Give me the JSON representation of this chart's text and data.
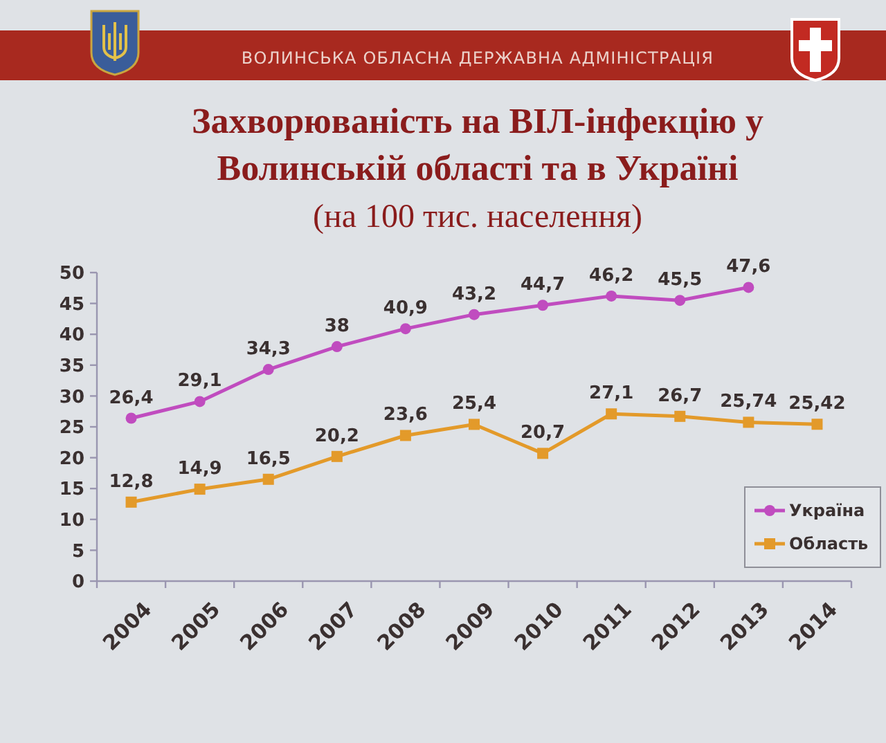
{
  "chart_data": {
    "type": "line",
    "title": "Захворюваність на ВІЛ-інфекцію у Волинській області та в Україні",
    "subtitle": "(на 100 тис. населення)",
    "annotations": [
      "ВОЛИНСЬКА ОБЛАСНА ДЕРЖАВНА АДМІНІСТРАЦІЯ"
    ],
    "categories": [
      "2004",
      "2005",
      "2006",
      "2007",
      "2008",
      "2009",
      "2010",
      "2011",
      "2012",
      "2013",
      "2014"
    ],
    "series": [
      {
        "name": "Україна",
        "color": "#c04cbf",
        "marker": "circle",
        "values": [
          26.4,
          29.1,
          34.3,
          38,
          40.9,
          43.2,
          44.7,
          46.2,
          45.5,
          47.6,
          null
        ],
        "value_labels": [
          "26,4",
          "29,1",
          "34,3",
          "38",
          "40,9",
          "43,2",
          "44,7",
          "46,2",
          "45,5",
          "47,6",
          null
        ]
      },
      {
        "name": "Область",
        "color": "#e39a2a",
        "marker": "square",
        "values": [
          12.8,
          14.9,
          16.5,
          20.2,
          23.6,
          25.4,
          20.7,
          27.1,
          26.7,
          25.74,
          25.42
        ],
        "value_labels": [
          "12,8",
          "14,9",
          "16,5",
          "20,2",
          "23,6",
          "25,4",
          "20,7",
          "27,1",
          "26,7",
          "25,74",
          "25,42"
        ]
      }
    ],
    "ylim": [
      0,
      50
    ],
    "yticks": [
      0,
      5,
      10,
      15,
      20,
      25,
      30,
      35,
      40,
      45,
      50
    ],
    "legend": "bottom right"
  }
}
